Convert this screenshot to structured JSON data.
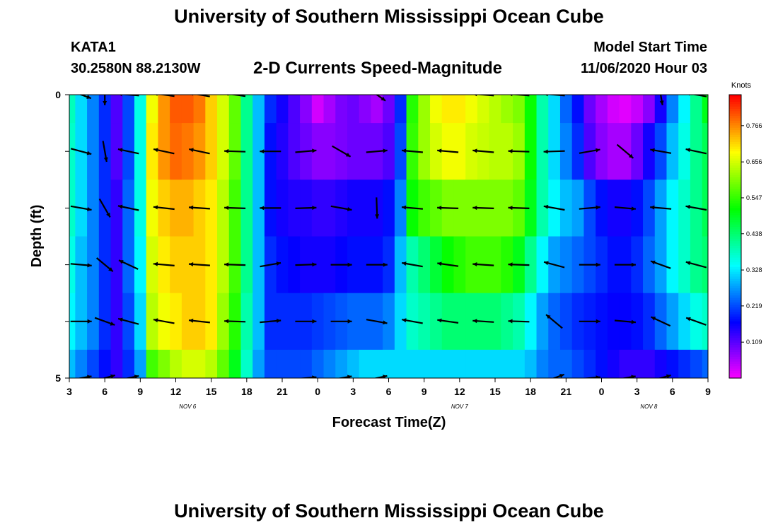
{
  "header": {
    "title_top": "University of Southern Mississippi Ocean Cube",
    "title_bottom": "University of Southern Mississippi Ocean Cube",
    "station": "KATA1",
    "coords": "30.2580N 88.2130W",
    "plot_title": "2-D Currents Speed-Magnitude",
    "model_start_label": "Model Start Time",
    "model_start_value": "11/06/2020 Hour 03"
  },
  "chart_data": {
    "type": "heatmap",
    "title": "2-D Currents Speed-Magnitude",
    "xlabel": "Forecast Time(Z)",
    "ylabel": "Depth (ft)",
    "x_hours": [
      3,
      4,
      5,
      6,
      7,
      8,
      9,
      10,
      11,
      12,
      13,
      14,
      15,
      16,
      17,
      18,
      19,
      20,
      21,
      22,
      23,
      24,
      25,
      26,
      27,
      28,
      29,
      30,
      31,
      32,
      33,
      34,
      35,
      36,
      37,
      38,
      39,
      40,
      41,
      42,
      43,
      44,
      45,
      46,
      47,
      48,
      49,
      50,
      51,
      52,
      53,
      54,
      55,
      56,
      57
    ],
    "xlim": [
      3,
      57
    ],
    "x_tick_hours": [
      3,
      6,
      9,
      12,
      15,
      18,
      21,
      24,
      27,
      30,
      33,
      36,
      39,
      42,
      45,
      48,
      51,
      54,
      57
    ],
    "x_tick_labels": [
      "3",
      "6",
      "9",
      "12",
      "15",
      "18",
      "21",
      "0",
      "3",
      "6",
      "9",
      "12",
      "15",
      "18",
      "21",
      "0",
      "3",
      "6",
      "9"
    ],
    "date_labels": [
      {
        "text": "NOV  6",
        "hour": 13
      },
      {
        "text": "NOV  7",
        "hour": 36
      },
      {
        "text": "NOV  8",
        "hour": 52
      }
    ],
    "depth_ft": [
      0,
      1,
      2,
      3,
      4,
      5
    ],
    "ylim": [
      0,
      5
    ],
    "y_tick_labels": [
      "0",
      "5"
    ],
    "colorbar": {
      "unit": "Knots",
      "ticks": [
        0.766,
        0.656,
        0.547,
        0.438,
        0.328,
        0.219,
        0.109
      ],
      "tick_labels": [
        "0.766",
        "0.656",
        "0.547",
        "0.438",
        "0.328",
        "0.219",
        "0.109"
      ],
      "min": 0.0,
      "max": 0.86
    },
    "speed_profiles": [
      {
        "depth_range": [
          0,
          0.5
        ],
        "speed_knots": [
          0.39,
          0.32,
          0.26,
          0.2,
          0.12,
          0.22,
          0.36,
          0.68,
          0.76,
          0.8,
          0.8,
          0.78,
          0.72,
          0.66,
          0.58,
          0.42,
          0.3,
          0.2,
          0.16,
          0.12,
          0.08,
          0.03,
          0.06,
          0.09,
          0.1,
          0.08,
          0.06,
          0.1,
          0.2,
          0.54,
          0.62,
          0.68,
          0.7,
          0.7,
          0.68,
          0.66,
          0.64,
          0.62,
          0.6,
          0.52,
          0.4,
          0.32,
          0.24,
          0.18,
          0.1,
          0.06,
          0.03,
          0.02,
          0.04,
          0.08,
          0.16,
          0.26,
          0.34,
          0.42,
          0.5
        ]
      },
      {
        "depth_range": [
          0.5,
          1.5
        ],
        "speed_knots": [
          0.38,
          0.32,
          0.26,
          0.2,
          0.12,
          0.22,
          0.36,
          0.7,
          0.76,
          0.79,
          0.78,
          0.76,
          0.72,
          0.66,
          0.58,
          0.42,
          0.3,
          0.18,
          0.15,
          0.12,
          0.1,
          0.08,
          0.08,
          0.09,
          0.1,
          0.1,
          0.1,
          0.12,
          0.22,
          0.55,
          0.62,
          0.66,
          0.68,
          0.68,
          0.66,
          0.65,
          0.64,
          0.64,
          0.62,
          0.52,
          0.4,
          0.32,
          0.26,
          0.2,
          0.12,
          0.08,
          0.06,
          0.06,
          0.1,
          0.16,
          0.22,
          0.3,
          0.36,
          0.42,
          0.46
        ]
      },
      {
        "depth_range": [
          1.5,
          2.5
        ],
        "speed_knots": [
          0.38,
          0.32,
          0.26,
          0.2,
          0.14,
          0.24,
          0.36,
          0.68,
          0.72,
          0.74,
          0.74,
          0.72,
          0.7,
          0.64,
          0.56,
          0.42,
          0.3,
          0.18,
          0.16,
          0.15,
          0.15,
          0.14,
          0.14,
          0.15,
          0.16,
          0.16,
          0.16,
          0.18,
          0.26,
          0.52,
          0.56,
          0.58,
          0.6,
          0.6,
          0.6,
          0.6,
          0.6,
          0.6,
          0.58,
          0.5,
          0.4,
          0.34,
          0.3,
          0.28,
          0.22,
          0.18,
          0.16,
          0.16,
          0.18,
          0.22,
          0.28,
          0.34,
          0.38,
          0.42,
          0.46
        ]
      },
      {
        "depth_range": [
          2.5,
          3.5
        ],
        "speed_knots": [
          0.36,
          0.3,
          0.26,
          0.2,
          0.14,
          0.24,
          0.34,
          0.66,
          0.7,
          0.72,
          0.72,
          0.72,
          0.7,
          0.64,
          0.56,
          0.42,
          0.3,
          0.2,
          0.18,
          0.17,
          0.16,
          0.16,
          0.16,
          0.17,
          0.18,
          0.18,
          0.18,
          0.2,
          0.3,
          0.4,
          0.44,
          0.48,
          0.52,
          0.54,
          0.56,
          0.56,
          0.56,
          0.54,
          0.5,
          0.42,
          0.34,
          0.28,
          0.26,
          0.24,
          0.22,
          0.2,
          0.18,
          0.18,
          0.2,
          0.24,
          0.28,
          0.34,
          0.38,
          0.42,
          0.44
        ]
      },
      {
        "depth_range": [
          3.5,
          4.5
        ],
        "speed_knots": [
          0.34,
          0.3,
          0.26,
          0.2,
          0.14,
          0.22,
          0.32,
          0.64,
          0.68,
          0.7,
          0.72,
          0.72,
          0.7,
          0.62,
          0.54,
          0.4,
          0.3,
          0.2,
          0.2,
          0.2,
          0.2,
          0.21,
          0.22,
          0.23,
          0.24,
          0.24,
          0.24,
          0.26,
          0.32,
          0.38,
          0.4,
          0.42,
          0.44,
          0.44,
          0.44,
          0.44,
          0.44,
          0.42,
          0.4,
          0.34,
          0.28,
          0.24,
          0.22,
          0.2,
          0.19,
          0.18,
          0.17,
          0.17,
          0.18,
          0.2,
          0.24,
          0.28,
          0.32,
          0.36,
          0.38
        ]
      },
      {
        "depth_range": [
          4.5,
          5
        ],
        "speed_knots": [
          0.3,
          0.26,
          0.22,
          0.18,
          0.14,
          0.2,
          0.28,
          0.56,
          0.6,
          0.64,
          0.66,
          0.66,
          0.64,
          0.58,
          0.5,
          0.38,
          0.28,
          0.22,
          0.22,
          0.22,
          0.22,
          0.24,
          0.26,
          0.28,
          0.3,
          0.32,
          0.32,
          0.32,
          0.32,
          0.32,
          0.32,
          0.32,
          0.32,
          0.32,
          0.32,
          0.32,
          0.32,
          0.32,
          0.32,
          0.3,
          0.26,
          0.24,
          0.24,
          0.22,
          0.2,
          0.18,
          0.16,
          0.14,
          0.14,
          0.14,
          0.16,
          0.18,
          0.2,
          0.22,
          0.24
        ]
      }
    ],
    "vector_hours": [
      4,
      6,
      8,
      11,
      14,
      17,
      20,
      23,
      26,
      29,
      32,
      35,
      38,
      41,
      44,
      47,
      50,
      53,
      56
    ],
    "vector_depths": [
      0,
      1,
      2,
      3,
      4,
      5
    ],
    "vector_angles_deg": [
      [
        -20,
        -90,
        175,
        172,
        170,
        172,
        null,
        null,
        null,
        -35,
        null,
        null,
        175,
        175,
        175,
        null,
        null,
        -80,
        170
      ],
      [
        -15,
        -80,
        168,
        168,
        168,
        178,
        180,
        5,
        -30,
        5,
        175,
        175,
        175,
        178,
        182,
        10,
        -40,
        170,
        168
      ],
      [
        -10,
        -60,
        168,
        174,
        176,
        178,
        180,
        2,
        -10,
        -88,
        175,
        178,
        178,
        178,
        170,
        5,
        -5,
        175,
        170
      ],
      [
        -5,
        -40,
        155,
        175,
        176,
        178,
        10,
        2,
        0,
        0,
        170,
        172,
        176,
        178,
        165,
        0,
        0,
        160,
        165
      ],
      [
        0,
        -20,
        165,
        170,
        174,
        178,
        5,
        0,
        0,
        -10,
        170,
        172,
        176,
        178,
        140,
        0,
        -5,
        155,
        160
      ],
      [
        10,
        15,
        12,
        null,
        null,
        null,
        null,
        5,
        10,
        12,
        null,
        null,
        null,
        null,
        20,
        5,
        10,
        15,
        null
      ]
    ]
  }
}
